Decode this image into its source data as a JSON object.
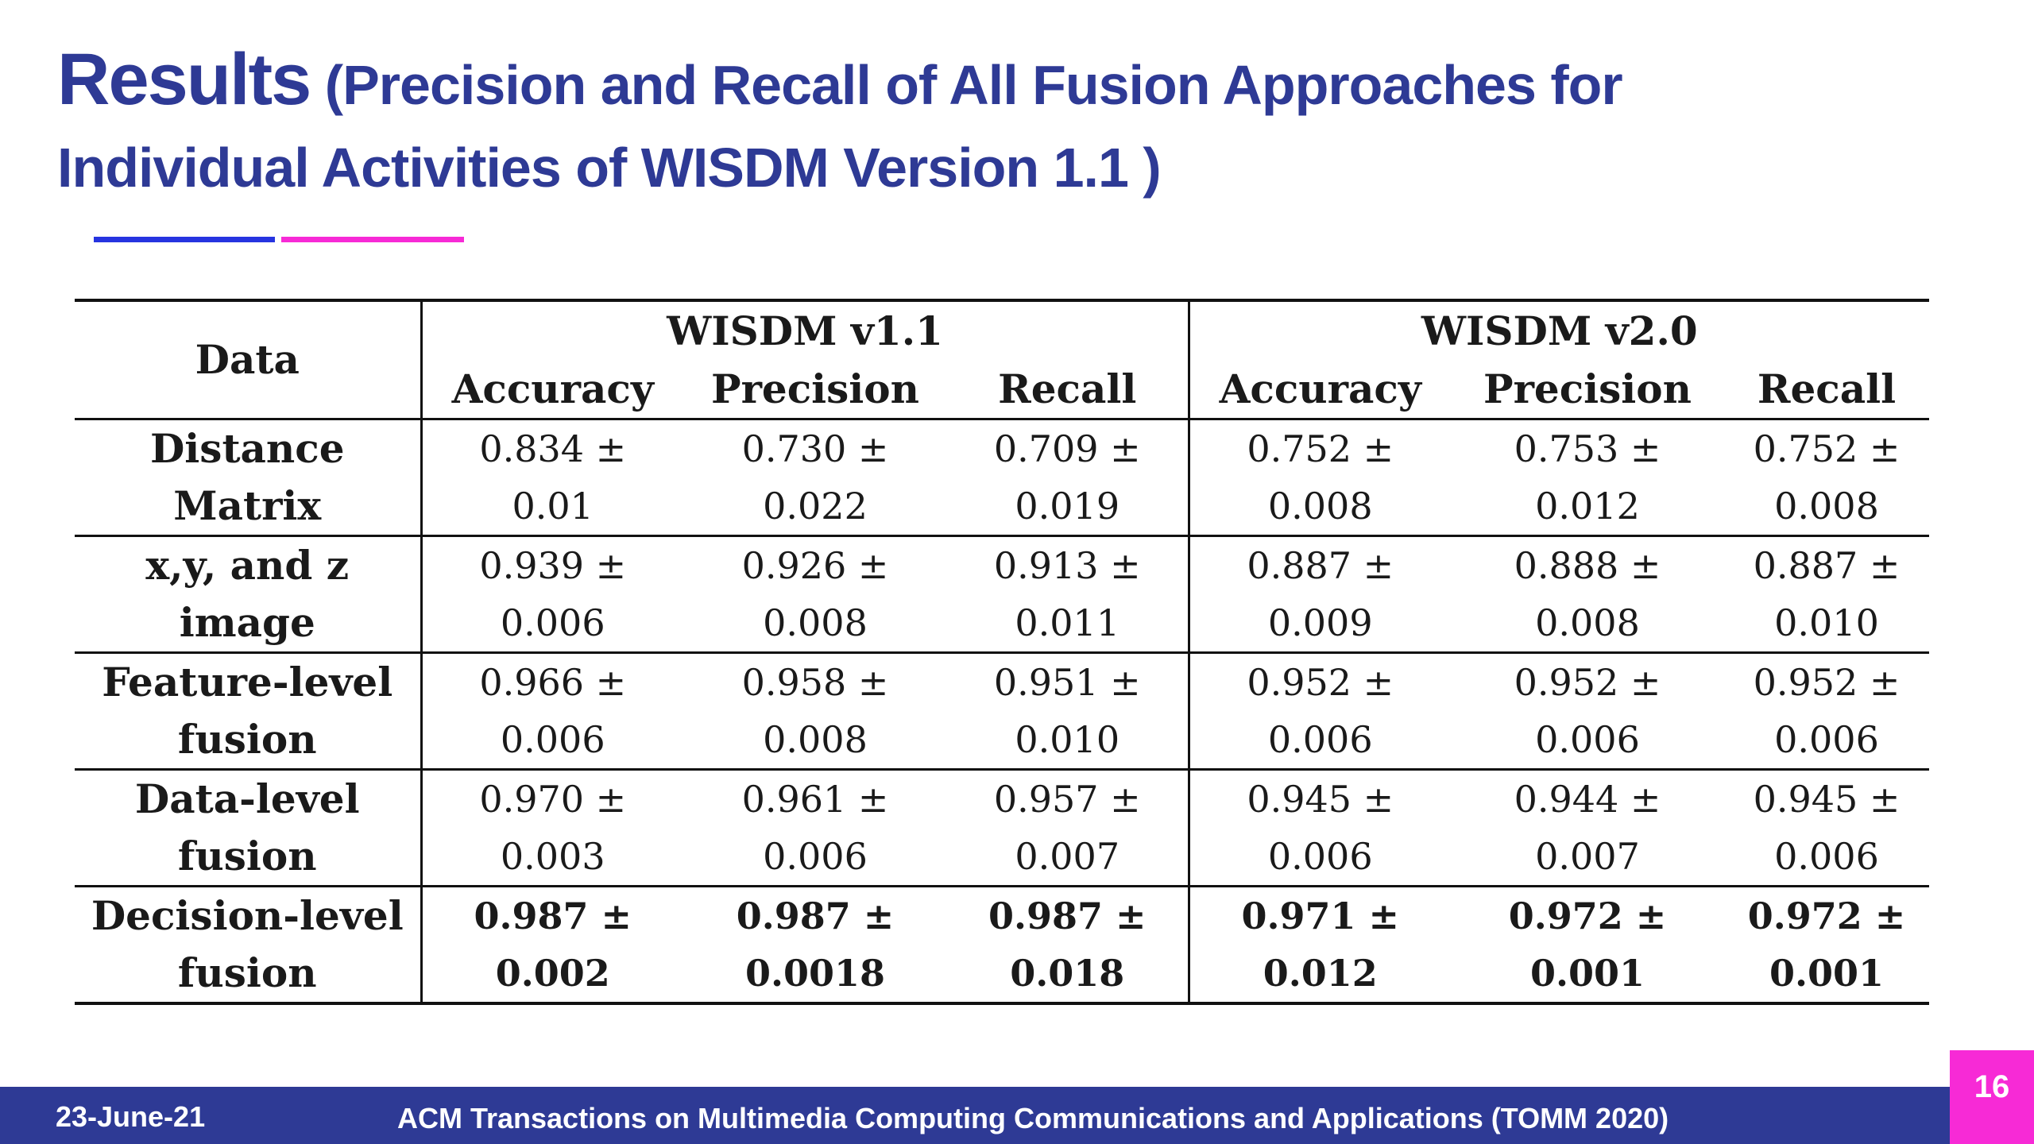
{
  "title": {
    "main": "Results",
    "subtitle": "(Precision and Recall of All Fusion Approaches for Individual Activities of WISDM Version 1.1 )"
  },
  "colors": {
    "title": "#2e3a95",
    "accent_blue": "#2634e0",
    "accent_pink": "#f72ad6",
    "footer": "#2e3a95",
    "page_box": "#f72ad6"
  },
  "table": {
    "corner_header": "Data",
    "groups": [
      "WISDM v1.1",
      "WISDM v2.0"
    ],
    "columns": [
      "Accuracy",
      "Precision",
      "Recall",
      "Accuracy",
      "Precision",
      "Recall"
    ],
    "rows": [
      {
        "label1": "Distance",
        "label2": "Matrix",
        "values": [
          [
            "0.834 ±",
            "0.01"
          ],
          [
            "0.730 ±",
            "0.022"
          ],
          [
            "0.709 ±",
            "0.019"
          ],
          [
            "0.752 ±",
            "0.008"
          ],
          [
            "0.753 ±",
            "0.012"
          ],
          [
            "0.752 ±",
            "0.008"
          ]
        ]
      },
      {
        "label1": "x,y, and z",
        "label2": "image",
        "values": [
          [
            "0.939 ±",
            "0.006"
          ],
          [
            "0.926 ±",
            "0.008"
          ],
          [
            "0.913 ±",
            "0.011"
          ],
          [
            "0.887 ±",
            "0.009"
          ],
          [
            "0.888 ±",
            "0.008"
          ],
          [
            "0.887 ±",
            "0.010"
          ]
        ]
      },
      {
        "label1": "Feature-level",
        "label2": "fusion",
        "values": [
          [
            "0.966 ±",
            "0.006"
          ],
          [
            "0.958 ±",
            "0.008"
          ],
          [
            "0.951 ±",
            "0.010"
          ],
          [
            "0.952 ±",
            "0.006"
          ],
          [
            "0.952 ±",
            "0.006"
          ],
          [
            "0.952 ±",
            "0.006"
          ]
        ]
      },
      {
        "label1": "Data-level",
        "label2": "fusion",
        "values": [
          [
            "0.970 ±",
            "0.003"
          ],
          [
            "0.961 ±",
            "0.006"
          ],
          [
            "0.957 ±",
            "0.007"
          ],
          [
            "0.945 ±",
            "0.006"
          ],
          [
            "0.944 ±",
            "0.007"
          ],
          [
            "0.945 ±",
            "0.006"
          ]
        ]
      },
      {
        "label1": "Decision-level",
        "label2": "fusion",
        "bold": true,
        "values": [
          [
            "0.987 ±",
            "0.002"
          ],
          [
            "0.987 ±",
            "0.0018"
          ],
          [
            "0.987 ±",
            "0.018"
          ],
          [
            "0.971 ±",
            "0.012"
          ],
          [
            "0.972 ±",
            "0.001"
          ],
          [
            "0.972 ±",
            "0.001"
          ]
        ]
      }
    ]
  },
  "footer": {
    "date": "23-June-21",
    "text": "ACM Transactions on Multimedia Computing Communications and Applications (TOMM 2020)",
    "page": "16"
  }
}
